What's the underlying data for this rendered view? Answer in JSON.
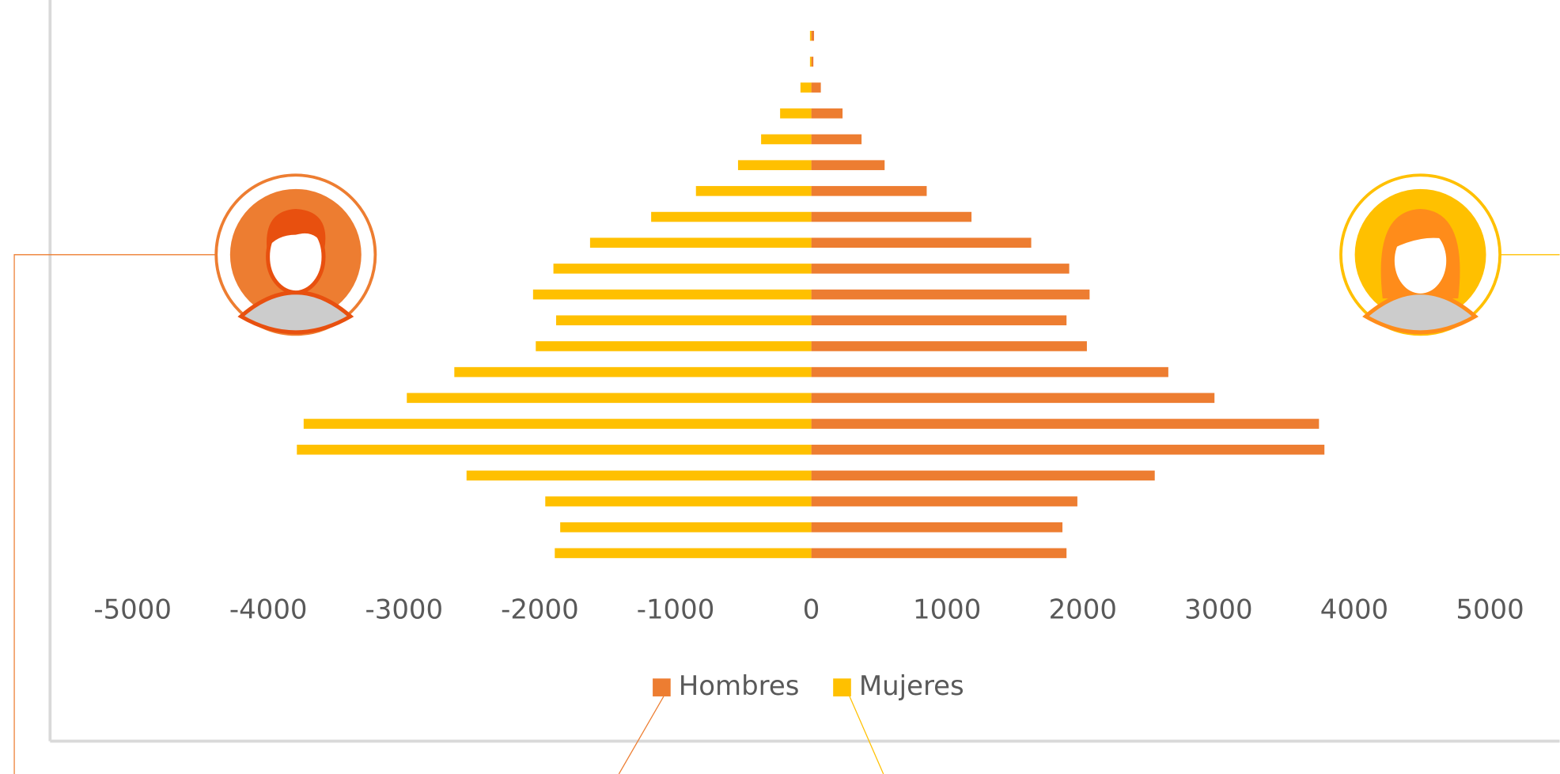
{
  "chart_data": {
    "type": "bar",
    "orientation": "horizontal",
    "stacked": true,
    "series": [
      {
        "name": "Hombres",
        "color": "#ED7D31",
        "values": [
          20,
          15,
          70,
          230,
          370,
          540,
          850,
          1180,
          1620,
          1900,
          2050,
          1880,
          2030,
          2630,
          2970,
          3740,
          3780,
          2530,
          1960,
          1850,
          1880
        ]
      },
      {
        "name": "Mujeres",
        "color": "#FFC000",
        "values": [
          -10,
          -10,
          -80,
          -230,
          -370,
          -540,
          -850,
          -1180,
          -1630,
          -1900,
          -2050,
          -1880,
          -2030,
          -2630,
          -2980,
          -3740,
          -3790,
          -2540,
          -1960,
          -1850,
          -1890
        ]
      }
    ],
    "xlim": [
      -5000,
      5000
    ],
    "xticks": [
      -5000,
      -4000,
      -3000,
      -2000,
      -1000,
      0,
      1000,
      2000,
      3000,
      4000,
      5000
    ],
    "legend": "bottom"
  }
}
